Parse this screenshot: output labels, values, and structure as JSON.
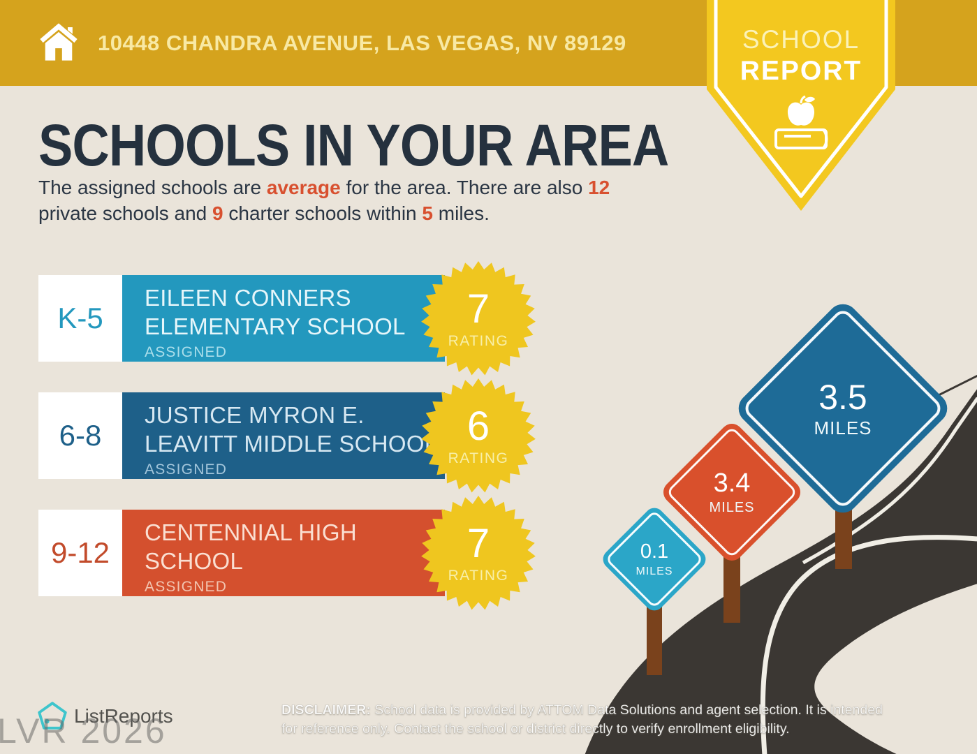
{
  "header": {
    "address": "10448 CHANDRA AVENUE, LAS VEGAS, NV 89129",
    "badge": {
      "line1": "SCHOOL",
      "line2": "REPORT"
    }
  },
  "main": {
    "title": "SCHOOLS IN YOUR AREA",
    "intro": {
      "t1": "The assigned schools are ",
      "h1": "average",
      "t2": " for the area. There are also ",
      "h2": "12",
      "t3": "\nprivate schools and ",
      "h3": "9",
      "t4": " charter schools within ",
      "h4": "5",
      "t5": " miles."
    },
    "schools": [
      {
        "grades": "K-5",
        "name_line1": "EILEEN CONNERS",
        "name_line2": "ELEMENTARY SCHOOL",
        "status": "ASSIGNED",
        "rating": "7",
        "rating_label": "RATING",
        "color": "#2398BE"
      },
      {
        "grades": "6-8",
        "name_line1": "JUSTICE MYRON E.",
        "name_line2": "LEAVITT MIDDLE SCHOOL",
        "status": "ASSIGNED",
        "rating": "6",
        "rating_label": "RATING",
        "color": "#1E6089"
      },
      {
        "grades": "9-12",
        "name_line1": "CENTENNIAL HIGH",
        "name_line2": "SCHOOL",
        "status": "ASSIGNED",
        "rating": "7",
        "rating_label": "RATING",
        "color": "#D4502E"
      }
    ],
    "distance_signs": [
      {
        "value": "0.1",
        "unit": "MILES",
        "color": "#2BA6C8"
      },
      {
        "value": "3.4",
        "unit": "MILES",
        "color": "#D9502C"
      },
      {
        "value": "3.5",
        "unit": "MILES",
        "color": "#1E6B97"
      }
    ]
  },
  "footer": {
    "logo_text": "ListReports",
    "watermark": "LVR 2026",
    "disclaimer_label": "DISCLAIMER:",
    "disclaimer_line1_rest": " School data is provided by ATTOM Data Solutions and agent selection. It is intended",
    "disclaimer_line2": "for reference only. Contact the school or district directly to verify enrollment eligibility."
  },
  "colors": {
    "header_gold": "#D5A31D",
    "badge_yellow": "#F3C81F",
    "background_beige": "#EAE4DA",
    "accent_orange": "#D8502F",
    "title_navy": "#25313E",
    "starburst_yellow": "#EFC61F",
    "road_dark": "#3B3733",
    "post_brown": "#7A421C",
    "logo_teal": "#3EC5CC"
  }
}
